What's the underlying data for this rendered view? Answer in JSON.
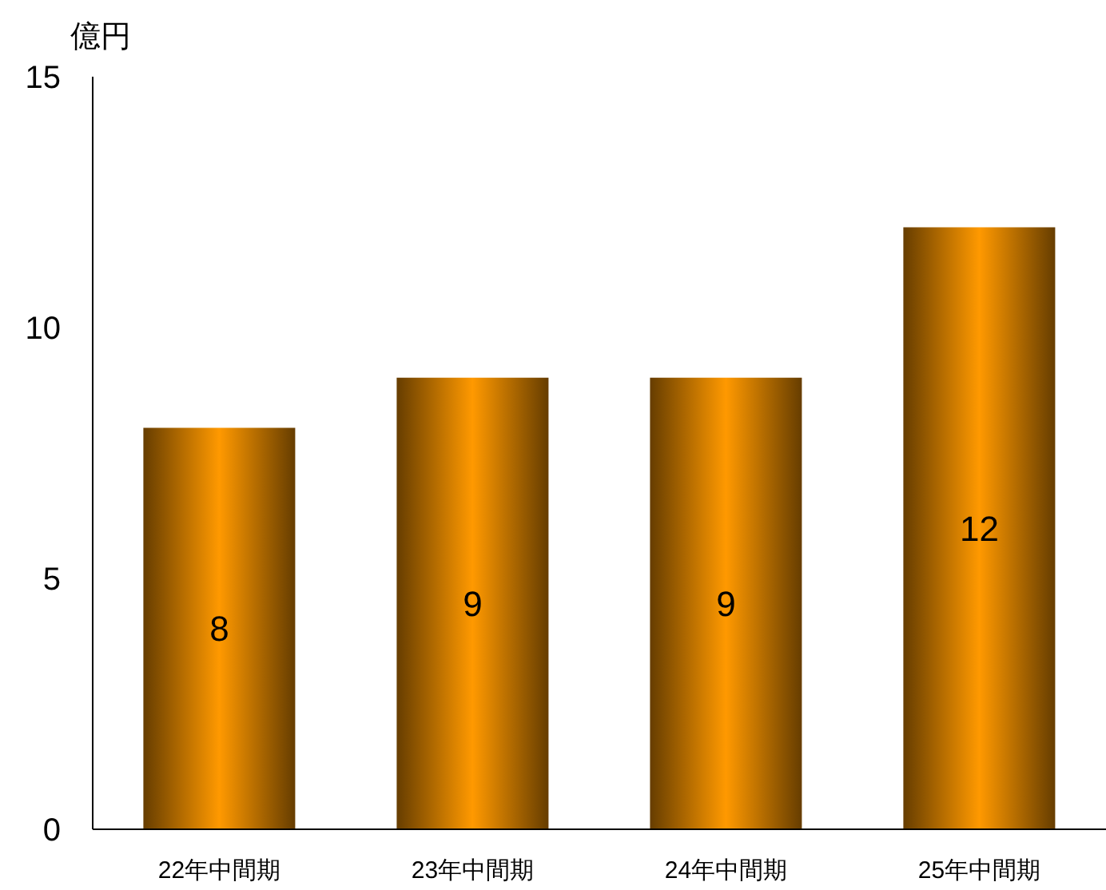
{
  "chart_data": {
    "type": "bar",
    "ylabel": "億円",
    "categories": [
      "22年中間期",
      "23年中間期",
      "24年中間期",
      "25年中間期"
    ],
    "values": [
      8,
      9,
      9,
      12
    ],
    "color": "#ff9900",
    "ylim": [
      0,
      15
    ],
    "yticks": [
      0,
      5,
      10,
      15
    ],
    "grid": false,
    "data_labels": true
  }
}
